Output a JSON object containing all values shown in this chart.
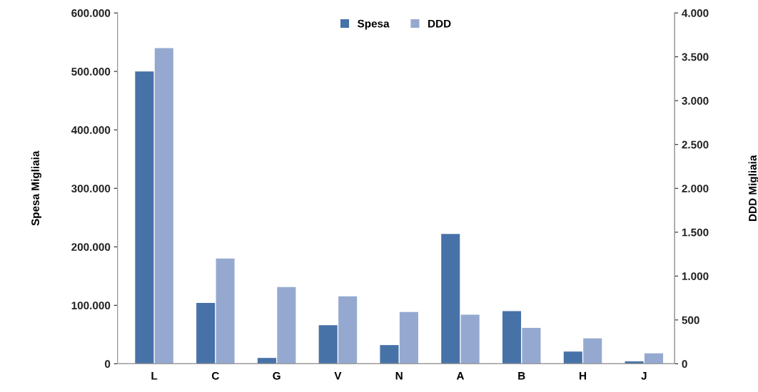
{
  "chart_data": {
    "type": "bar",
    "categories": [
      "L",
      "C",
      "G",
      "V",
      "N",
      "A",
      "B",
      "H",
      "J"
    ],
    "series": [
      {
        "name": "Spesa",
        "color": "#4672a8",
        "values": [
          500000,
          104000,
          10000,
          66000,
          32000,
          222000,
          90000,
          21000,
          4000
        ]
      },
      {
        "name": "DDD",
        "color": "#95a9d0",
        "axis": "y2",
        "values": [
          3600,
          1200,
          875,
          770,
          590,
          560,
          410,
          290,
          120
        ]
      }
    ],
    "ylabel": "Spesa Migliaia",
    "y2label": "DDD Migliaia",
    "ylim": [
      0,
      600000
    ],
    "yticks": [
      0,
      {
        "value": 100000,
        "label": "100.000"
      },
      {
        "value": 200000,
        "label": "200.000"
      },
      {
        "value": 300000,
        "label": "300.000"
      },
      {
        "value": 400000,
        "label": "400.000"
      },
      {
        "value": 500000,
        "label": "500.000"
      },
      {
        "value": 600000,
        "label": "600.000"
      }
    ],
    "y2lim": [
      0,
      4000
    ],
    "y2ticks": [
      0,
      500,
      {
        "value": 1000,
        "label": "1.000"
      },
      {
        "value": 1500,
        "label": "1.500"
      },
      {
        "value": 2000,
        "label": "2.000"
      },
      {
        "value": 2500,
        "label": "2.500"
      },
      {
        "value": 3000,
        "label": "3.000"
      },
      {
        "value": 3500,
        "label": "3.500"
      },
      {
        "value": 4000,
        "label": "4.000"
      }
    ],
    "grid": false,
    "legend": "top"
  }
}
